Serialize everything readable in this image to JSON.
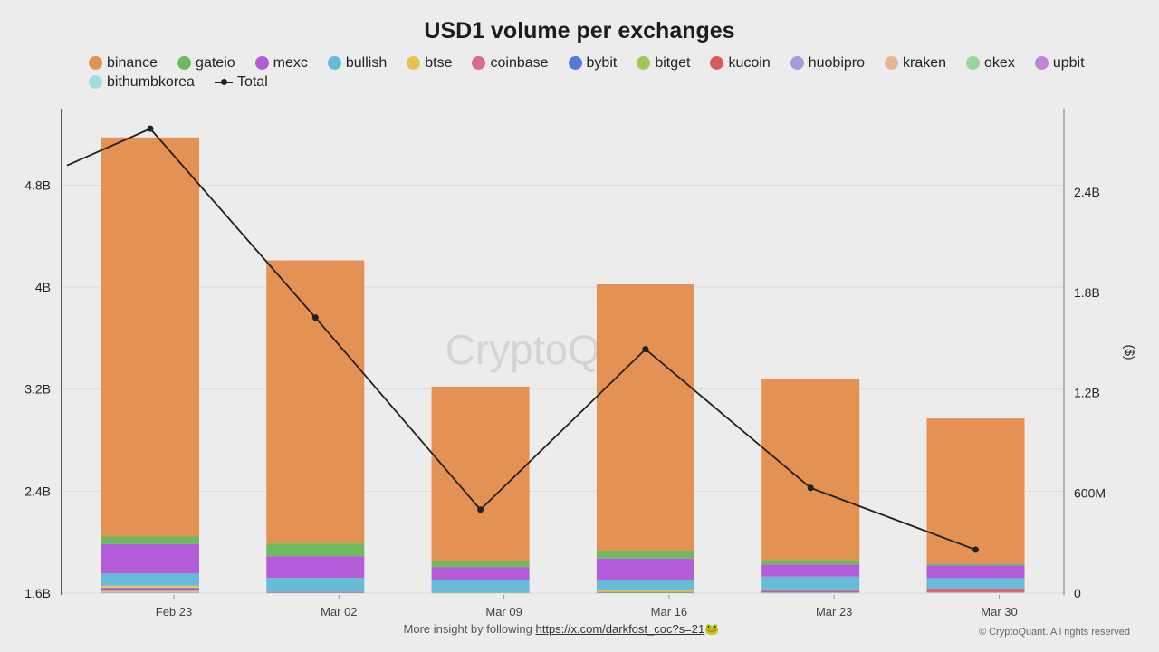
{
  "chart_data": {
    "type": "bar",
    "stacked": true,
    "title": "USD1 volume per exchanges",
    "categories": [
      "Feb 23",
      "Mar 02",
      "Mar 09",
      "Mar 16",
      "Mar 23",
      "Mar 30"
    ],
    "left_axis": {
      "ylim": [
        1600000000,
        5400000000
      ],
      "ticks": [
        "1.6B",
        "2.4B",
        "3.2B",
        "4B",
        "4.8B"
      ],
      "tick_values": [
        1600000000,
        2400000000,
        3200000000,
        4000000000,
        4800000000
      ]
    },
    "right_axis": {
      "label": "($)",
      "ylim": [
        0,
        2900000000
      ],
      "ticks": [
        "0",
        "600M",
        "1.2B",
        "1.8B",
        "2.4B"
      ],
      "tick_values": [
        0,
        600000000,
        1200000000,
        1800000000,
        2400000000
      ]
    },
    "series": [
      {
        "name": "binance",
        "color": "#e49254",
        "values": [
          3130000000,
          2220000000,
          1370000000,
          2090000000,
          1420000000,
          1140000000
        ]
      },
      {
        "name": "gateio",
        "color": "#6fba5e",
        "values": [
          60000000,
          100000000,
          45000000,
          60000000,
          35000000,
          12000000
        ]
      },
      {
        "name": "mexc",
        "color": "#b35bd8",
        "values": [
          230000000,
          170000000,
          100000000,
          170000000,
          95000000,
          100000000
        ]
      },
      {
        "name": "bullish",
        "color": "#65bcd8",
        "values": [
          95000000,
          110000000,
          100000000,
          80000000,
          100000000,
          80000000
        ]
      },
      {
        "name": "btse",
        "color": "#e6c253",
        "values": [
          15000000,
          0,
          0,
          12000000,
          0,
          0
        ]
      },
      {
        "name": "coinbase",
        "color": "#d96a94",
        "values": [
          8000000,
          5000000,
          3000000,
          3000000,
          10000000,
          10000000
        ]
      },
      {
        "name": "bybit",
        "color": "#5578d9",
        "values": [
          8000000,
          3000000,
          0,
          2000000,
          5000000,
          5000000
        ]
      },
      {
        "name": "bitget",
        "color": "#9ec95a",
        "values": [
          3000000,
          0,
          0,
          3000000,
          0,
          0
        ]
      },
      {
        "name": "kucoin",
        "color": "#d95c5c",
        "values": [
          5000000,
          0,
          0,
          0,
          8000000,
          15000000
        ]
      },
      {
        "name": "huobipro",
        "color": "#a69ae0",
        "values": [
          3000000,
          0,
          0,
          0,
          5000000,
          3000000
        ]
      },
      {
        "name": "kraken",
        "color": "#e8b494",
        "values": [
          10000000,
          0,
          0,
          0,
          0,
          0
        ]
      },
      {
        "name": "okex",
        "color": "#99d49c",
        "values": [
          3000000,
          2000000,
          2000000,
          2000000,
          2000000,
          5000000
        ]
      },
      {
        "name": "upbit",
        "color": "#c085d9",
        "values": [
          2000000,
          0,
          0,
          0,
          0,
          0
        ]
      },
      {
        "name": "bithumbkorea",
        "color": "#a6d9e6",
        "values": [
          2000000,
          0,
          0,
          0,
          0,
          0
        ]
      }
    ],
    "total": {
      "name": "Total",
      "color": "#222222",
      "axis": "right",
      "values": [
        2780000000,
        1650000000,
        500000000,
        1460000000,
        630000000,
        260000000
      ],
      "start_value": 2560000000
    },
    "watermark": "CryptoQuant"
  },
  "footer": {
    "text": "More insight by following ",
    "link": "https://x.com/darkfost_coc?s=21",
    "emoji": "🐸",
    "copyright": "© CryptoQuant. All rights reserved"
  }
}
